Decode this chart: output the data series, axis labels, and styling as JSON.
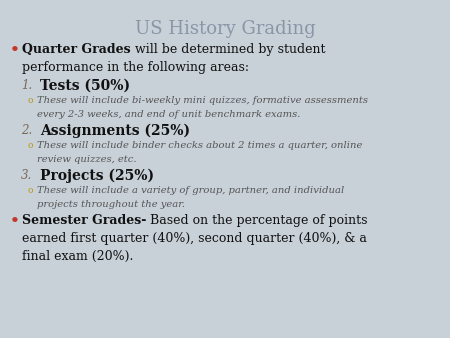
{
  "title": "US History Grading",
  "title_color": "#8896a8",
  "background_color": "#c8d0d8",
  "bullet_color": "#c0392b",
  "number_color": "#7a6a58",
  "sub_bullet_color": "#b8960c",
  "text_color": "#111111",
  "sub_text_color": "#555555",
  "figsize": [
    4.5,
    3.38
  ],
  "dpi": 100,
  "title_fs": 13,
  "main_fs": 9.0,
  "num_fs": 8.5,
  "sub_fs": 7.2,
  "lines": [
    {
      "type": "title",
      "text": "US History Grading"
    },
    {
      "type": "bullet",
      "bold": "Quarter Grades",
      "normal": " will be determined by student"
    },
    {
      "type": "cont",
      "text": "performance in the following areas:"
    },
    {
      "type": "numbered",
      "num": "1.",
      "bold": "Tests (50%)"
    },
    {
      "type": "sub",
      "text": "These will include bi-weekly mini quizzes, formative assessments"
    },
    {
      "type": "subcont",
      "text": "every 2-3 weeks, and end of unit benchmark exams."
    },
    {
      "type": "numbered",
      "num": "2.",
      "bold": "Assignments (25%)"
    },
    {
      "type": "sub",
      "text": "These will include binder checks about 2 times a quarter, online"
    },
    {
      "type": "subcont",
      "text": "review quizzes, etc."
    },
    {
      "type": "numbered",
      "num": "3.",
      "bold": "Projects (25%)"
    },
    {
      "type": "sub",
      "text": "These will include a variety of group, partner, and individual"
    },
    {
      "type": "subcont",
      "text": "projects throughout the year."
    },
    {
      "type": "bullet",
      "bold": "Semester Grades-",
      "normal": " Based on the percentage of points"
    },
    {
      "type": "cont",
      "text": "earned first quarter (40%), second quarter (40%), & a"
    },
    {
      "type": "cont",
      "text": "final exam (20%)."
    }
  ]
}
